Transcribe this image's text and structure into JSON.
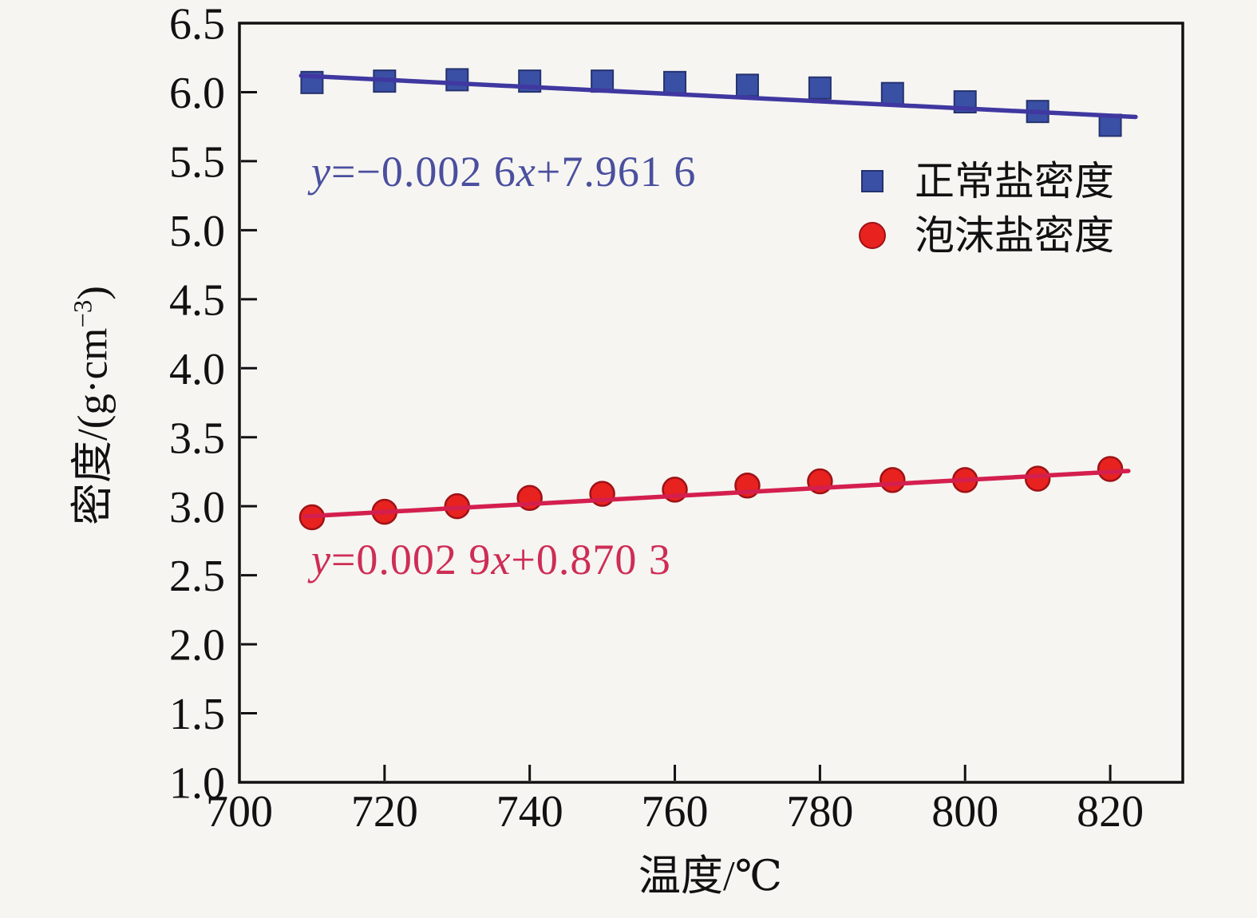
{
  "chart_data": {
    "type": "scatter",
    "title": "",
    "xlabel": "温度/℃",
    "ylabel": "密度/(g·cm⁻³)",
    "xlim": [
      700,
      830
    ],
    "ylim": [
      1.0,
      6.5
    ],
    "grid": false,
    "legend_position": "upper right inside",
    "x_ticks": [
      700,
      720,
      740,
      760,
      780,
      800,
      820
    ],
    "x_tick_labels": [
      "700",
      "720",
      "740",
      "760",
      "780",
      "800",
      "820"
    ],
    "y_ticks": [
      1.0,
      1.5,
      2.0,
      2.5,
      3.0,
      3.5,
      4.0,
      4.5,
      5.0,
      5.5,
      6.0,
      6.5
    ],
    "y_tick_labels": [
      "1.0",
      "1.5",
      "2.0",
      "2.5",
      "3.0",
      "3.5",
      "4.0",
      "4.5",
      "5.0",
      "5.5",
      "6.0",
      "6.5"
    ],
    "x": [
      710,
      720,
      730,
      740,
      750,
      760,
      770,
      780,
      790,
      800,
      810,
      820
    ],
    "series": [
      {
        "name": "正常盐密度",
        "marker": "square",
        "color": "#3a50a5",
        "edge": "#26336f",
        "line_color": "#4038a0",
        "values": [
          6.07,
          6.08,
          6.09,
          6.08,
          6.08,
          6.07,
          6.05,
          6.03,
          5.99,
          5.93,
          5.86,
          5.76
        ],
        "fit": {
          "slope": -0.0026,
          "intercept": 7.9616,
          "label": "y=−0.002 6x+7.961 6"
        },
        "line_x_range": [
          708.5,
          823.5
        ]
      },
      {
        "name": "泡沫盐密度",
        "marker": "circle",
        "color": "#e8221f",
        "edge": "#9e1216",
        "line_color": "#d41f4e",
        "values": [
          2.92,
          2.96,
          3.0,
          3.06,
          3.09,
          3.12,
          3.15,
          3.18,
          3.19,
          3.19,
          3.2,
          3.27
        ],
        "fit": {
          "slope": 0.0029,
          "intercept": 0.8703,
          "label": "y=0.002 9x+0.870 3"
        },
        "line_x_range": [
          709,
          822.5
        ]
      }
    ]
  },
  "axes": {
    "x_label": "温度/℃",
    "y_label_pre": "密度/(g·cm",
    "y_label_sup": "−3",
    "y_label_post": ")"
  },
  "legend": {
    "items": [
      {
        "label": "正常盐密度"
      },
      {
        "label": "泡沫盐密度"
      }
    ]
  },
  "equations": {
    "blue": {
      "y": "y",
      "mid": "=−0.002 6",
      "x": "x",
      "tail": "+7.961 6"
    },
    "red": {
      "y": "y",
      "mid": "=0.002 9",
      "x": "x",
      "tail": "+0.870 3"
    }
  },
  "colors": {
    "normal_salt_marker": "#3a50a5",
    "normal_salt_line": "#4038a0",
    "foam_salt_marker": "#e8221f",
    "foam_salt_line": "#d41f4e",
    "eq_blue_text": "#4a4f9e",
    "eq_red_text": "#ce2d55",
    "axis": "#111111",
    "background": "#f6f5f2"
  }
}
